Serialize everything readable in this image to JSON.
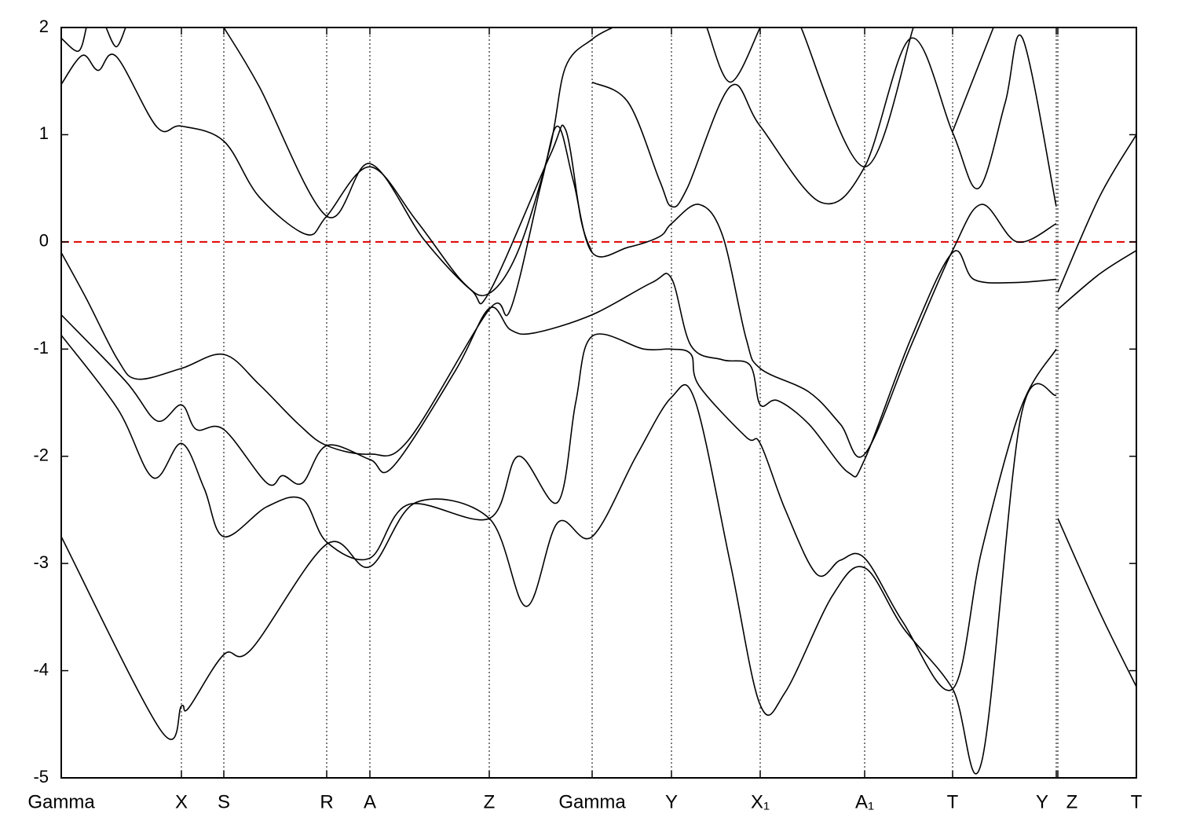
{
  "chart_data": {
    "type": "line",
    "xlim": [
      0,
      13.69
    ],
    "ylim": [
      -5,
      2
    ],
    "yticks": [
      -5,
      -4,
      -3,
      -2,
      -1,
      0,
      1,
      2
    ],
    "xticks": [
      {
        "value": 0,
        "label": "Gamma"
      },
      {
        "value": 1.53,
        "label": "X"
      },
      {
        "value": 2.07,
        "label": "S"
      },
      {
        "value": 3.38,
        "label": "R"
      },
      {
        "value": 3.93,
        "label": "A"
      },
      {
        "value": 5.45,
        "label": "Z"
      },
      {
        "value": 6.76,
        "label": "Gamma"
      },
      {
        "value": 7.77,
        "label": "Y"
      },
      {
        "value": 8.9,
        "label": "X₁"
      },
      {
        "value": 10.23,
        "label": "A₁"
      },
      {
        "value": 11.35,
        "label": "T"
      },
      {
        "value": 12.67,
        "label": "Y"
      },
      {
        "value": 12.69,
        "label": "Z"
      },
      {
        "value": 13.69,
        "label": "T"
      }
    ],
    "xgrid": true,
    "hlines": [
      {
        "value": 0,
        "color": "#e00000",
        "style": "dashed"
      }
    ],
    "series": [
      {
        "color": "#000000",
        "x": [
          0,
          1.27,
          1.53,
          1.62,
          2.07,
          2.42,
          3.38,
          3.93,
          4.52,
          5.45,
          5.92,
          6.32,
          6.76,
          7.32,
          7.77,
          8.07,
          8.52,
          8.9,
          9.22,
          9.82,
          10.23,
          10.72,
          11.35,
          11.72,
          12.22,
          12.67,
          12.68,
          12.69,
          13.22,
          13.69
        ],
        "values": [
          -2.75,
          -4.56,
          -4.33,
          -4.35,
          -3.85,
          -3.8,
          -2.82,
          -3.03,
          -2.43,
          -2.58,
          -3.4,
          -2.62,
          -2.75,
          -2.0,
          -1.45,
          -1.48,
          -3.0,
          -4.32,
          -4.2,
          -3.3,
          -3.04,
          -3.6,
          -4.17,
          -4.85,
          -1.63,
          -1.43,
          null,
          -2.58,
          -3.45,
          -4.15
        ]
      },
      {
        "color": "#000000",
        "x": [
          0,
          0.72,
          1.17,
          1.53,
          1.82,
          2.07,
          2.62,
          3.07,
          3.38,
          3.93,
          4.42,
          5.45,
          5.82,
          6.32,
          6.55,
          6.76,
          7.42,
          7.77,
          8.02,
          8.12,
          8.72,
          8.9,
          9.22,
          9.62,
          9.92,
          10.23,
          10.72,
          11.35,
          11.72,
          12.22,
          12.67,
          12.68,
          12.69,
          13.22,
          13.69
        ],
        "values": [
          -0.87,
          -1.56,
          -2.2,
          -1.88,
          -2.3,
          -2.75,
          -2.47,
          -2.4,
          -2.8,
          -2.95,
          -2.45,
          -2.58,
          -2.0,
          -2.43,
          -1.5,
          -0.88,
          -1.0,
          -1.0,
          -1.05,
          -1.34,
          -1.82,
          -1.88,
          -2.5,
          -3.1,
          -2.97,
          -2.95,
          -3.55,
          -4.17,
          -2.88,
          -1.55,
          -1.0,
          null,
          -0.63,
          -0.3,
          -0.08
        ]
      },
      {
        "color": "#000000",
        "x": [
          0,
          0.82,
          1.22,
          1.53,
          1.72,
          2.07,
          2.62,
          2.82,
          3.07,
          3.38,
          3.93,
          4.22,
          5.02,
          5.45,
          5.72,
          6.02,
          6.76,
          7.52,
          7.77,
          8.02,
          8.42,
          8.77,
          8.9,
          9.12,
          9.52,
          10.02,
          10.23,
          10.82,
          11.35,
          11.62,
          12.12,
          12.67,
          12.68,
          12.69,
          13.22,
          13.69
        ],
        "values": [
          -0.68,
          -1.3,
          -1.67,
          -1.52,
          -1.75,
          -1.75,
          -2.25,
          -2.18,
          -2.25,
          -1.9,
          -2.03,
          -2.1,
          -1.2,
          -0.62,
          -0.82,
          -0.85,
          -0.68,
          -0.38,
          -0.34,
          -0.97,
          -1.1,
          -1.15,
          -1.52,
          -1.48,
          -1.7,
          -2.15,
          -2.03,
          -0.9,
          -0.1,
          -0.35,
          -0.38,
          -0.35,
          null,
          -0.47,
          0.42,
          1.0
        ]
      },
      {
        "color": "#000000",
        "x": [
          0,
          0.32,
          0.72,
          0.97,
          1.53,
          2.07,
          2.52,
          3.02,
          3.38,
          3.93,
          4.42,
          5.45,
          5.72,
          6.12,
          6.32,
          6.52,
          6.76,
          7.22,
          7.62,
          7.77,
          8.12,
          8.42,
          8.72,
          8.9,
          9.52,
          9.92,
          10.23,
          10.82,
          11.35,
          11.72,
          12.17,
          12.67
        ],
        "values": [
          -0.1,
          -0.53,
          -1.1,
          -1.28,
          -1.18,
          -1.05,
          -1.33,
          -1.7,
          -1.9,
          -1.98,
          -1.85,
          -0.63,
          -0.63,
          0.57,
          1.08,
          0.57,
          -0.1,
          -0.05,
          0.05,
          0.17,
          0.35,
          0.06,
          -0.9,
          -1.18,
          -1.4,
          -1.7,
          -1.98,
          -0.97,
          -0.08,
          0.35,
          0,
          0.17
        ]
      },
      {
        "color": "#000000",
        "x": [
          0,
          0.27,
          0.47,
          0.7,
          1.22,
          1.53,
          2.07,
          2.52,
          3.12,
          3.38,
          3.93,
          4.52,
          5.12,
          5.45,
          5.82,
          6.22,
          6.42,
          6.76,
          7.02
        ],
        "values": [
          1.47,
          1.74,
          1.6,
          1.73,
          1.07,
          1.08,
          0.94,
          0.42,
          0.07,
          0.24,
          0.7,
          0.2,
          -0.38,
          -0.48,
          -0.08,
          0.87,
          1.63,
          1.89,
          2.0
        ]
      },
      {
        "color": "#000000",
        "x": [
          2.07,
          2.52,
          3.38,
          3.93,
          4.62,
          5.22,
          5.45,
          6.22,
          6.42,
          6.62,
          6.76
        ],
        "values": [
          2.0,
          1.45,
          0.24,
          0.73,
          0.02,
          -0.45,
          -0.47,
          0.8,
          1.05,
          0.2,
          -0.1
        ]
      },
      {
        "color": "#000000",
        "x": [
          6.76,
          7.22,
          7.62,
          7.77,
          7.97,
          8.52,
          8.9,
          9.67,
          10.23,
          10.82,
          11.35,
          11.68,
          12.02,
          12.24,
          12.67
        ],
        "values": [
          1.49,
          1.3,
          0.57,
          0.33,
          0.5,
          1.45,
          1.08,
          0.37,
          0.7,
          1.9,
          1.02,
          0.5,
          1.3,
          1.9,
          0.33
        ]
      },
      {
        "color": "#000000",
        "x": [
          0,
          0.22,
          0.32,
          0.33,
          0.57,
          0.7,
          0.82,
          0.83,
          8.22,
          8.52,
          8.9,
          8.91,
          9.42,
          10.23,
          10.85,
          10.86,
          11.35,
          11.87
        ],
        "values": [
          1.9,
          1.78,
          2.0,
          null,
          2.0,
          1.82,
          2.0,
          null,
          2.0,
          1.49,
          2.0,
          null,
          2.0,
          0.7,
          2.0,
          null,
          1.03,
          2.0
        ]
      }
    ]
  }
}
